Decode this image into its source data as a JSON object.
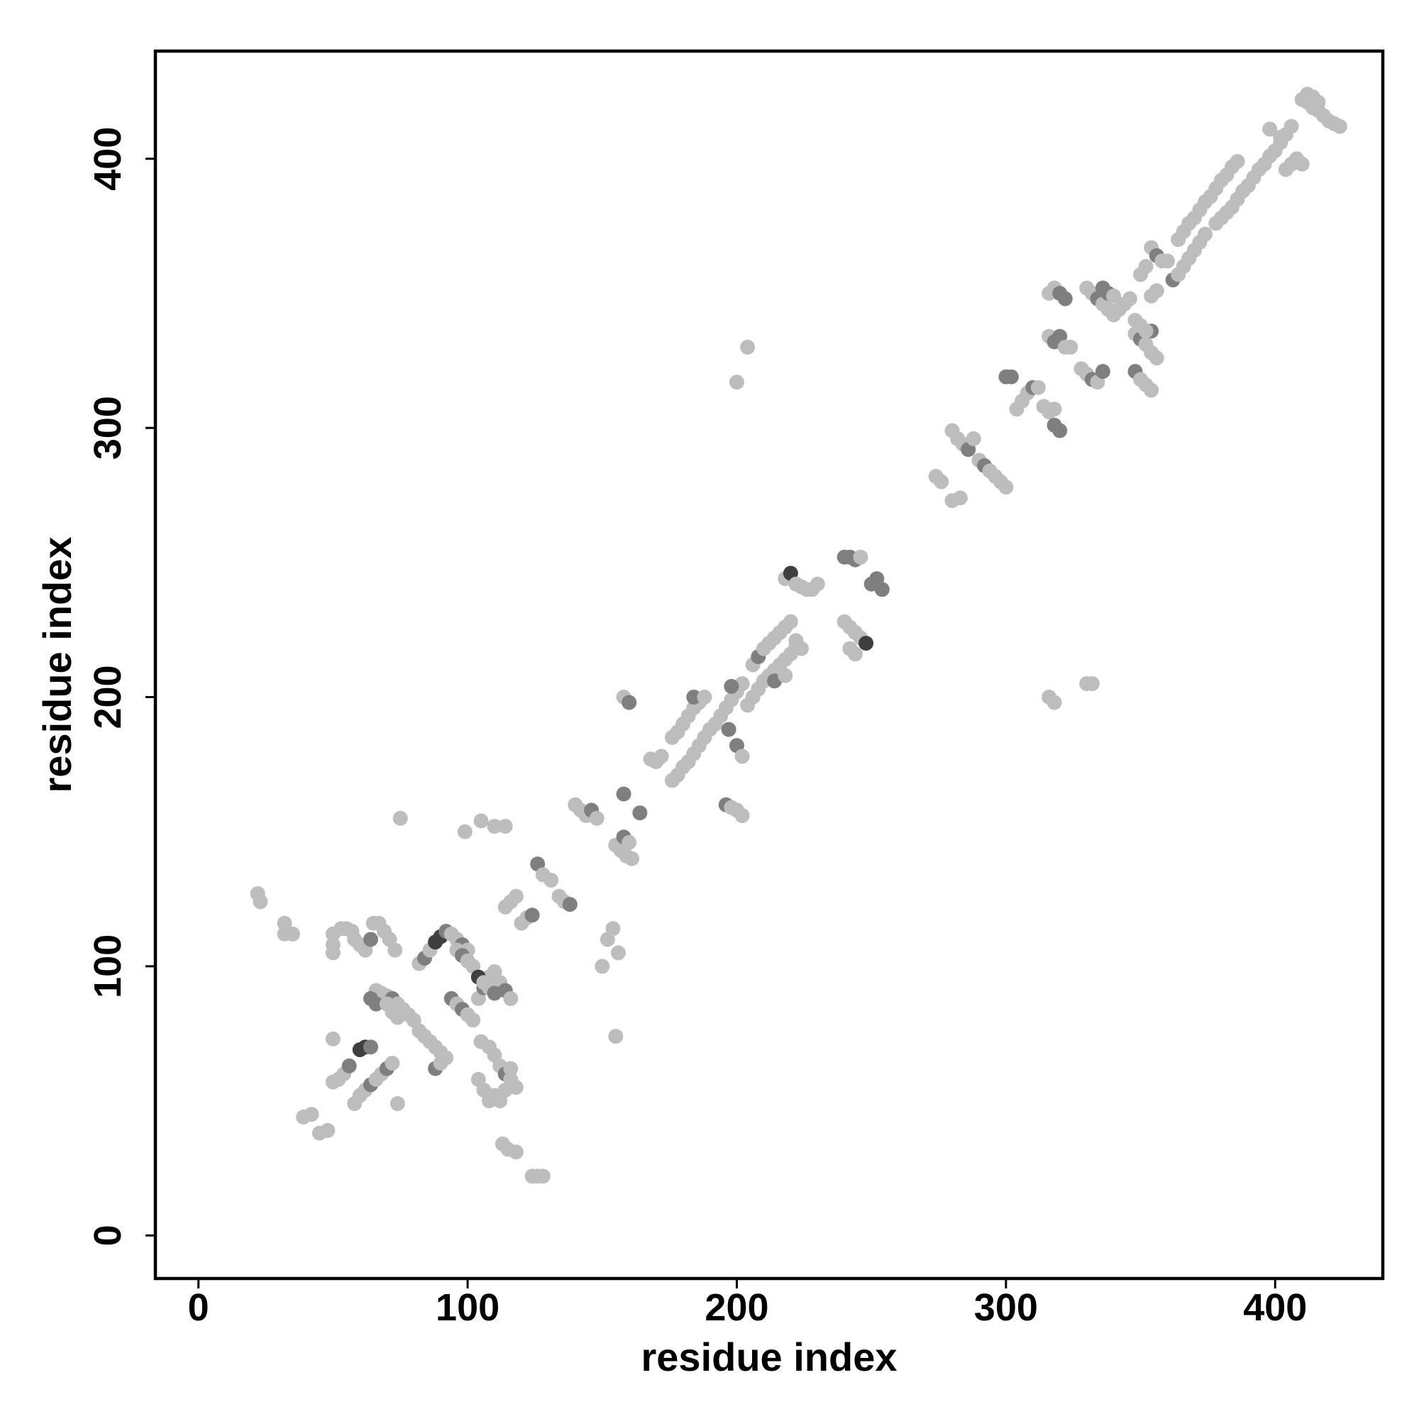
{
  "chart_data": {
    "type": "scatter",
    "title": "",
    "xlabel": "residue index",
    "ylabel": "residue index",
    "xlim": [
      -16,
      440
    ],
    "ylim": [
      -16,
      440
    ],
    "x_ticks": [
      0,
      100,
      200,
      300,
      400
    ],
    "y_ticks": [
      0,
      100,
      200,
      300,
      400
    ],
    "tick_labels": [
      "0",
      "100",
      "200",
      "300",
      "400"
    ],
    "grid": false,
    "legend": "none",
    "colors": {
      "light": "#bdbdbd",
      "medium": "#7f7f7f",
      "dark": "#3f3f3f"
    },
    "points": [
      [
        22,
        127,
        0
      ],
      [
        23,
        124,
        0
      ],
      [
        32,
        116,
        0
      ],
      [
        32,
        112,
        0
      ],
      [
        35,
        112,
        0
      ],
      [
        39,
        44,
        0
      ],
      [
        42,
        45,
        0
      ],
      [
        45,
        38,
        0
      ],
      [
        48,
        39,
        0
      ],
      [
        50,
        73,
        0
      ],
      [
        50,
        57,
        0
      ],
      [
        52,
        58,
        0
      ],
      [
        54,
        60,
        0
      ],
      [
        56,
        63,
        1
      ],
      [
        58,
        49,
        0
      ],
      [
        60,
        52,
        0
      ],
      [
        62,
        54,
        0
      ],
      [
        64,
        56,
        1
      ],
      [
        66,
        58,
        0
      ],
      [
        68,
        60,
        0
      ],
      [
        70,
        62,
        1
      ],
      [
        72,
        64,
        0
      ],
      [
        50,
        112,
        0
      ],
      [
        50,
        108,
        0
      ],
      [
        50,
        105,
        0
      ],
      [
        53,
        114,
        0
      ],
      [
        55,
        114,
        0
      ],
      [
        57,
        113,
        0
      ],
      [
        58,
        110,
        0
      ],
      [
        60,
        108,
        0
      ],
      [
        62,
        106,
        0
      ],
      [
        64,
        110,
        1
      ],
      [
        65,
        116,
        0
      ],
      [
        67,
        116,
        0
      ],
      [
        69,
        113,
        0
      ],
      [
        71,
        110,
        0
      ],
      [
        73,
        106,
        0
      ],
      [
        74,
        49,
        0
      ],
      [
        75,
        155,
        0
      ],
      [
        60,
        69,
        2
      ],
      [
        62,
        70,
        2
      ],
      [
        64,
        70,
        1
      ],
      [
        66,
        91,
        0
      ],
      [
        68,
        90,
        0
      ],
      [
        70,
        89,
        0
      ],
      [
        72,
        88,
        1
      ],
      [
        74,
        86,
        0
      ],
      [
        76,
        84,
        0
      ],
      [
        78,
        82,
        0
      ],
      [
        80,
        80,
        0
      ],
      [
        64,
        88,
        1
      ],
      [
        66,
        86,
        1
      ],
      [
        70,
        86,
        0
      ],
      [
        72,
        83,
        0
      ],
      [
        74,
        81,
        0
      ],
      [
        82,
        101,
        0
      ],
      [
        84,
        103,
        1
      ],
      [
        86,
        106,
        0
      ],
      [
        88,
        109,
        2
      ],
      [
        90,
        111,
        2
      ],
      [
        92,
        113,
        1
      ],
      [
        94,
        112,
        0
      ],
      [
        96,
        110,
        0
      ],
      [
        98,
        108,
        1
      ],
      [
        100,
        106,
        0
      ],
      [
        82,
        76,
        0
      ],
      [
        84,
        74,
        0
      ],
      [
        86,
        72,
        0
      ],
      [
        88,
        70,
        0
      ],
      [
        90,
        68,
        0
      ],
      [
        92,
        66,
        0
      ],
      [
        88,
        62,
        1
      ],
      [
        90,
        64,
        0
      ],
      [
        94,
        88,
        1
      ],
      [
        96,
        86,
        0
      ],
      [
        98,
        84,
        1
      ],
      [
        100,
        82,
        0
      ],
      [
        102,
        80,
        0
      ],
      [
        104,
        88,
        0
      ],
      [
        106,
        92,
        1
      ],
      [
        108,
        96,
        0
      ],
      [
        110,
        98,
        0
      ],
      [
        112,
        94,
        0
      ],
      [
        114,
        91,
        1
      ],
      [
        116,
        88,
        0
      ],
      [
        96,
        106,
        0
      ],
      [
        98,
        104,
        1
      ],
      [
        100,
        102,
        0
      ],
      [
        102,
        100,
        0
      ],
      [
        104,
        96,
        2
      ],
      [
        106,
        94,
        0
      ],
      [
        108,
        92,
        0
      ],
      [
        110,
        90,
        1
      ],
      [
        99,
        150,
        0
      ],
      [
        105,
        154,
        0
      ],
      [
        110,
        152,
        0
      ],
      [
        114,
        152,
        0
      ],
      [
        105,
        72,
        0
      ],
      [
        108,
        70,
        0
      ],
      [
        110,
        67,
        0
      ],
      [
        112,
        63,
        0
      ],
      [
        114,
        60,
        1
      ],
      [
        116,
        58,
        0
      ],
      [
        118,
        55,
        0
      ],
      [
        104,
        58,
        0
      ],
      [
        106,
        54,
        0
      ],
      [
        108,
        50,
        0
      ],
      [
        110,
        52,
        0
      ],
      [
        112,
        50,
        0
      ],
      [
        114,
        54,
        0
      ],
      [
        116,
        62,
        0
      ],
      [
        113,
        34,
        0
      ],
      [
        115,
        32,
        0
      ],
      [
        118,
        31,
        0
      ],
      [
        124,
        22,
        0
      ],
      [
        126,
        22,
        0
      ],
      [
        128,
        22,
        0
      ],
      [
        114,
        122,
        0
      ],
      [
        116,
        124,
        0
      ],
      [
        118,
        126,
        0
      ],
      [
        120,
        116,
        0
      ],
      [
        122,
        118,
        0
      ],
      [
        124,
        119,
        1
      ],
      [
        126,
        138,
        1
      ],
      [
        128,
        134,
        0
      ],
      [
        131,
        132,
        0
      ],
      [
        134,
        126,
        0
      ],
      [
        136,
        124,
        0
      ],
      [
        138,
        123,
        1
      ],
      [
        140,
        160,
        0
      ],
      [
        142,
        158,
        0
      ],
      [
        144,
        156,
        0
      ],
      [
        146,
        158,
        1
      ],
      [
        148,
        155,
        0
      ],
      [
        150,
        100,
        0
      ],
      [
        152,
        110,
        0
      ],
      [
        154,
        114,
        0
      ],
      [
        155,
        74,
        0
      ],
      [
        156,
        105,
        0
      ],
      [
        155,
        145,
        0
      ],
      [
        157,
        143,
        0
      ],
      [
        159,
        141,
        0
      ],
      [
        161,
        140,
        0
      ],
      [
        158,
        148,
        1
      ],
      [
        160,
        146,
        0
      ],
      [
        158,
        200,
        0
      ],
      [
        160,
        198,
        1
      ],
      [
        158,
        164,
        1
      ],
      [
        164,
        157,
        1
      ],
      [
        168,
        177,
        0
      ],
      [
        170,
        176,
        0
      ],
      [
        172,
        178,
        0
      ],
      [
        176,
        169,
        0
      ],
      [
        178,
        171,
        0
      ],
      [
        180,
        174,
        0
      ],
      [
        182,
        176,
        0
      ],
      [
        184,
        179,
        0
      ],
      [
        186,
        182,
        0
      ],
      [
        188,
        185,
        0
      ],
      [
        190,
        188,
        0
      ],
      [
        192,
        190,
        0
      ],
      [
        194,
        193,
        0
      ],
      [
        196,
        196,
        0
      ],
      [
        198,
        199,
        0
      ],
      [
        200,
        202,
        0
      ],
      [
        202,
        205,
        0
      ],
      [
        176,
        185,
        0
      ],
      [
        178,
        187,
        0
      ],
      [
        180,
        190,
        0
      ],
      [
        182,
        193,
        0
      ],
      [
        184,
        196,
        0
      ],
      [
        186,
        198,
        0
      ],
      [
        184,
        200,
        1
      ],
      [
        188,
        200,
        0
      ],
      [
        196,
        160,
        1
      ],
      [
        198,
        159,
        0
      ],
      [
        200,
        158,
        0
      ],
      [
        202,
        156,
        0
      ],
      [
        200,
        182,
        1
      ],
      [
        202,
        178,
        0
      ],
      [
        198,
        204,
        1
      ],
      [
        197,
        188,
        1
      ],
      [
        200,
        317,
        0
      ],
      [
        204,
        330,
        0
      ],
      [
        204,
        197,
        0
      ],
      [
        206,
        200,
        0
      ],
      [
        208,
        203,
        0
      ],
      [
        210,
        206,
        0
      ],
      [
        212,
        208,
        0
      ],
      [
        214,
        210,
        0
      ],
      [
        216,
        212,
        0
      ],
      [
        218,
        214,
        0
      ],
      [
        220,
        216,
        0
      ],
      [
        222,
        219,
        0
      ],
      [
        206,
        212,
        0
      ],
      [
        208,
        215,
        1
      ],
      [
        210,
        218,
        0
      ],
      [
        212,
        220,
        0
      ],
      [
        214,
        222,
        0
      ],
      [
        216,
        224,
        0
      ],
      [
        218,
        226,
        0
      ],
      [
        220,
        228,
        0
      ],
      [
        222,
        221,
        0
      ],
      [
        224,
        218,
        0
      ],
      [
        214,
        206,
        1
      ],
      [
        218,
        208,
        0
      ],
      [
        218,
        244,
        0
      ],
      [
        220,
        246,
        2
      ],
      [
        222,
        242,
        0
      ],
      [
        224,
        241,
        0
      ],
      [
        226,
        240,
        0
      ],
      [
        228,
        240,
        0
      ],
      [
        230,
        242,
        0
      ],
      [
        240,
        228,
        0
      ],
      [
        242,
        226,
        0
      ],
      [
        244,
        224,
        0
      ],
      [
        246,
        222,
        0
      ],
      [
        248,
        220,
        2
      ],
      [
        242,
        218,
        0
      ],
      [
        244,
        216,
        0
      ],
      [
        240,
        252,
        1
      ],
      [
        242,
        252,
        1
      ],
      [
        244,
        251,
        1
      ],
      [
        246,
        252,
        0
      ],
      [
        250,
        242,
        1
      ],
      [
        252,
        244,
        1
      ],
      [
        254,
        240,
        1
      ],
      [
        274,
        282,
        0
      ],
      [
        276,
        280,
        0
      ],
      [
        280,
        299,
        0
      ],
      [
        282,
        296,
        0
      ],
      [
        284,
        294,
        0
      ],
      [
        286,
        292,
        1
      ],
      [
        288,
        296,
        0
      ],
      [
        290,
        288,
        0
      ],
      [
        292,
        286,
        1
      ],
      [
        294,
        284,
        0
      ],
      [
        296,
        282,
        0
      ],
      [
        298,
        280,
        0
      ],
      [
        300,
        278,
        0
      ],
      [
        280,
        273,
        0
      ],
      [
        283,
        274,
        0
      ],
      [
        300,
        319,
        1
      ],
      [
        302,
        319,
        1
      ],
      [
        304,
        307,
        0
      ],
      [
        306,
        310,
        0
      ],
      [
        308,
        313,
        0
      ],
      [
        310,
        315,
        1
      ],
      [
        312,
        315,
        0
      ],
      [
        314,
        308,
        0
      ],
      [
        316,
        306,
        0
      ],
      [
        318,
        301,
        1
      ],
      [
        320,
        299,
        1
      ],
      [
        318,
        307,
        0
      ],
      [
        316,
        350,
        0
      ],
      [
        318,
        352,
        0
      ],
      [
        320,
        350,
        1
      ],
      [
        322,
        348,
        1
      ],
      [
        316,
        334,
        0
      ],
      [
        318,
        332,
        1
      ],
      [
        320,
        334,
        1
      ],
      [
        322,
        330,
        0
      ],
      [
        324,
        330,
        0
      ],
      [
        316,
        200,
        0
      ],
      [
        318,
        198,
        0
      ],
      [
        330,
        205,
        0
      ],
      [
        332,
        205,
        0
      ],
      [
        328,
        322,
        0
      ],
      [
        330,
        320,
        0
      ],
      [
        332,
        318,
        1
      ],
      [
        334,
        317,
        0
      ],
      [
        336,
        321,
        1
      ],
      [
        330,
        352,
        0
      ],
      [
        332,
        350,
        0
      ],
      [
        334,
        348,
        1
      ],
      [
        336,
        346,
        0
      ],
      [
        338,
        344,
        0
      ],
      [
        340,
        342,
        0
      ],
      [
        342,
        344,
        0
      ],
      [
        344,
        346,
        0
      ],
      [
        346,
        348,
        0
      ],
      [
        336,
        352,
        1
      ],
      [
        338,
        350,
        1
      ],
      [
        340,
        349,
        0
      ],
      [
        348,
        335,
        0
      ],
      [
        350,
        333,
        1
      ],
      [
        352,
        331,
        0
      ],
      [
        354,
        336,
        1
      ],
      [
        348,
        340,
        0
      ],
      [
        350,
        338,
        0
      ],
      [
        352,
        336,
        0
      ],
      [
        354,
        328,
        0
      ],
      [
        356,
        326,
        0
      ],
      [
        348,
        321,
        1
      ],
      [
        350,
        318,
        0
      ],
      [
        352,
        316,
        0
      ],
      [
        354,
        314,
        0
      ],
      [
        354,
        367,
        0
      ],
      [
        356,
        364,
        1
      ],
      [
        358,
        362,
        0
      ],
      [
        360,
        362,
        0
      ],
      [
        350,
        357,
        0
      ],
      [
        352,
        360,
        0
      ],
      [
        362,
        355,
        1
      ],
      [
        364,
        357,
        0
      ],
      [
        366,
        360,
        0
      ],
      [
        368,
        363,
        0
      ],
      [
        370,
        366,
        0
      ],
      [
        372,
        369,
        0
      ],
      [
        374,
        372,
        0
      ],
      [
        354,
        349,
        0
      ],
      [
        356,
        351,
        0
      ],
      [
        364,
        370,
        0
      ],
      [
        366,
        373,
        0
      ],
      [
        368,
        376,
        0
      ],
      [
        370,
        378,
        0
      ],
      [
        372,
        381,
        0
      ],
      [
        374,
        384,
        0
      ],
      [
        376,
        386,
        0
      ],
      [
        378,
        389,
        0
      ],
      [
        380,
        392,
        0
      ],
      [
        382,
        394,
        0
      ],
      [
        384,
        397,
        0
      ],
      [
        386,
        399,
        0
      ],
      [
        378,
        376,
        0
      ],
      [
        380,
        378,
        0
      ],
      [
        382,
        380,
        0
      ],
      [
        384,
        382,
        0
      ],
      [
        386,
        385,
        0
      ],
      [
        388,
        388,
        0
      ],
      [
        390,
        390,
        0
      ],
      [
        392,
        393,
        0
      ],
      [
        394,
        396,
        0
      ],
      [
        396,
        398,
        0
      ],
      [
        398,
        401,
        0
      ],
      [
        400,
        403,
        0
      ],
      [
        402,
        406,
        0
      ],
      [
        404,
        409,
        0
      ],
      [
        406,
        412,
        0
      ],
      [
        398,
        411,
        0
      ],
      [
        402,
        408,
        0
      ],
      [
        404,
        396,
        0
      ],
      [
        406,
        398,
        0
      ],
      [
        408,
        400,
        0
      ],
      [
        410,
        398,
        0
      ],
      [
        410,
        422,
        0
      ],
      [
        412,
        421,
        0
      ],
      [
        414,
        419,
        0
      ],
      [
        416,
        418,
        0
      ],
      [
        418,
        416,
        0
      ],
      [
        420,
        414,
        0
      ],
      [
        422,
        413,
        0
      ],
      [
        424,
        412,
        0
      ],
      [
        412,
        424,
        0
      ],
      [
        414,
        423,
        0
      ],
      [
        416,
        421,
        0
      ]
    ]
  }
}
